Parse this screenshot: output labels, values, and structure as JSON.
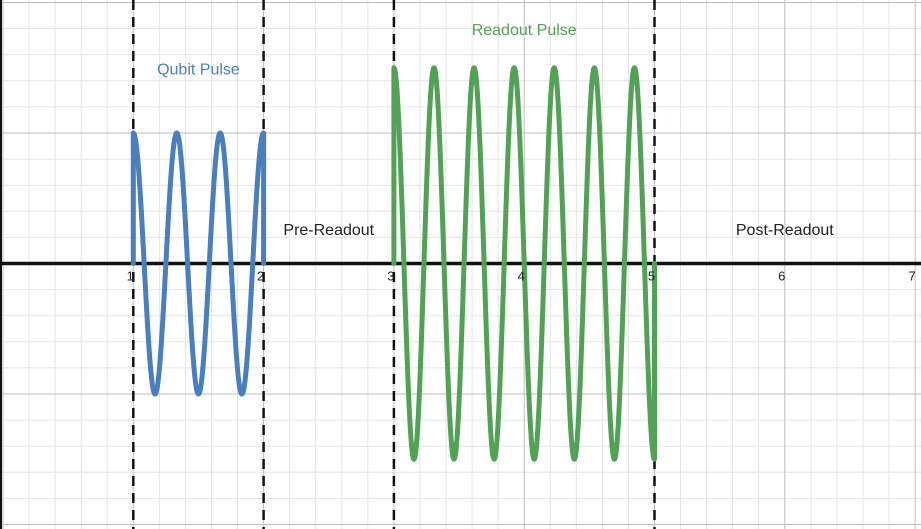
{
  "chart_data": {
    "type": "line",
    "x_range": [
      -1,
      7
    ],
    "y_range": [
      -2,
      2
    ],
    "grid": true,
    "x_ticks": [
      "1",
      "2",
      "3",
      "4",
      "5",
      "6",
      "7"
    ],
    "boundaries": [
      1,
      2,
      3,
      5
    ],
    "annotations": [
      {
        "text": "Qubit Pulse",
        "x": 1.5,
        "y": 1.45,
        "color": "#4a7fbd"
      },
      {
        "text": "Pre-Readout",
        "x": 2.5,
        "y": 0.22,
        "color": "#222222"
      },
      {
        "text": "Readout Pulse",
        "x": 4.0,
        "y": 1.75,
        "color": "#52a256"
      },
      {
        "text": "Post-Readout",
        "x": 6.0,
        "y": 0.22,
        "color": "#222222"
      }
    ],
    "series": [
      {
        "color": "#4a7fbd",
        "x_start": 1,
        "x_end": 2,
        "amplitude": 1.0,
        "cycles": 3,
        "phase": "cos"
      },
      {
        "color": "#52a256",
        "x_start": 3,
        "x_end": 5,
        "amplitude": 1.5,
        "cycles": 6.5,
        "phase": "cos"
      }
    ]
  }
}
